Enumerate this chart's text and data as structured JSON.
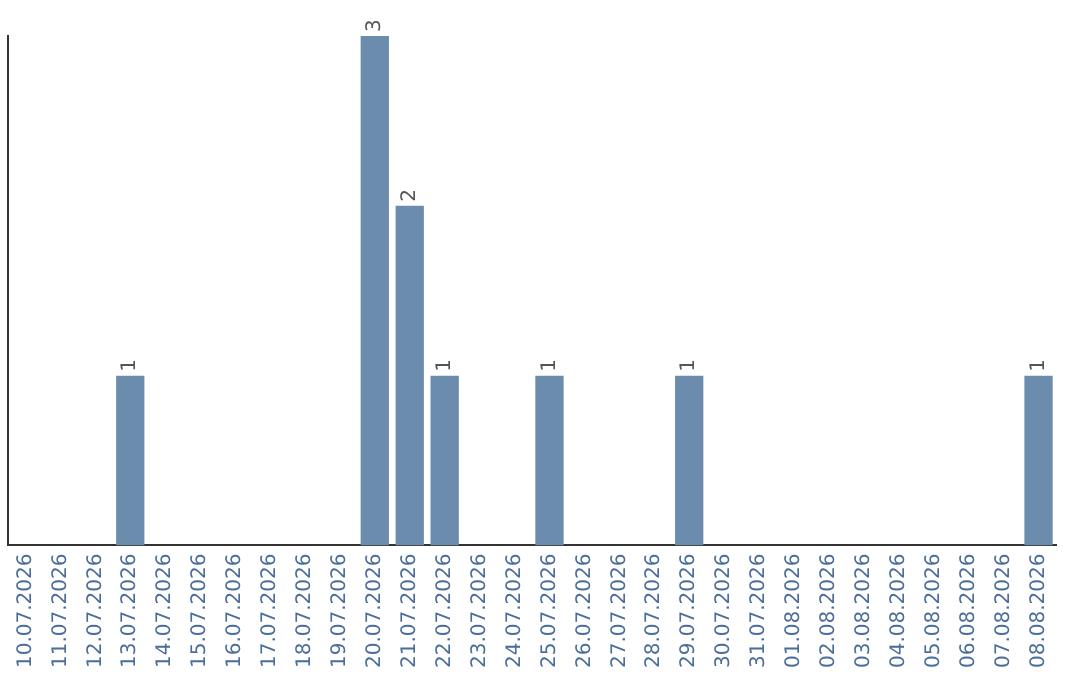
{
  "chart_data": {
    "type": "bar",
    "categories": [
      "10.07.2026",
      "11.07.2026",
      "12.07.2026",
      "13.07.2026",
      "14.07.2026",
      "15.07.2026",
      "16.07.2026",
      "17.07.2026",
      "18.07.2026",
      "19.07.2026",
      "20.07.2026",
      "21.07.2026",
      "22.07.2026",
      "23.07.2026",
      "24.07.2026",
      "25.07.2026",
      "26.07.2026",
      "27.07.2026",
      "28.07.2026",
      "29.07.2026",
      "30.07.2026",
      "31.07.2026",
      "01.08.2026",
      "02.08.2026",
      "03.08.2026",
      "04.08.2026",
      "05.08.2026",
      "06.08.2026",
      "07.08.2026",
      "08.08.2026"
    ],
    "values": [
      0,
      0,
      0,
      1,
      0,
      0,
      0,
      0,
      0,
      0,
      3,
      2,
      1,
      0,
      0,
      1,
      0,
      0,
      0,
      1,
      0,
      0,
      0,
      0,
      0,
      0,
      0,
      0,
      0,
      1
    ],
    "value_labels": [
      null,
      null,
      null,
      "1",
      null,
      null,
      null,
      null,
      null,
      null,
      "3",
      "2",
      "1",
      null,
      null,
      "1",
      null,
      null,
      null,
      "1",
      null,
      null,
      null,
      null,
      null,
      null,
      null,
      null,
      null,
      "1"
    ],
    "color": "#6b8cad",
    "ylim": [
      0,
      3
    ],
    "grid": false,
    "legend": false,
    "tick_labels": "x"
  }
}
